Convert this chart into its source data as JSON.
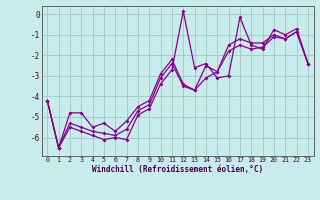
{
  "xlabel": "Windchill (Refroidissement éolien,°C)",
  "background_color": "#c8ecec",
  "line_color": "#880088",
  "grid_color": "#a0c8c8",
  "xlim": [
    -0.5,
    23.5
  ],
  "ylim": [
    -6.9,
    0.4
  ],
  "yticks": [
    0,
    -1,
    -2,
    -3,
    -4,
    -5,
    -6
  ],
  "xticks": [
    0,
    1,
    2,
    3,
    4,
    5,
    6,
    7,
    8,
    9,
    10,
    11,
    12,
    13,
    14,
    15,
    16,
    17,
    18,
    19,
    20,
    21,
    22,
    23
  ],
  "hours": [
    0,
    1,
    2,
    3,
    4,
    5,
    6,
    7,
    8,
    9,
    10,
    11,
    12,
    13,
    14,
    15,
    16,
    17,
    18,
    19,
    20,
    21,
    22,
    23
  ],
  "line1": [
    -4.2,
    -6.5,
    -5.5,
    -5.7,
    -5.9,
    -6.1,
    -6.0,
    -6.1,
    -4.9,
    -4.6,
    -3.4,
    -2.7,
    0.15,
    -2.6,
    -2.4,
    -3.1,
    -3.0,
    -0.15,
    -1.5,
    -1.7,
    -0.75,
    -1.0,
    -0.7,
    -2.4
  ],
  "line2": [
    -4.2,
    -6.5,
    -5.3,
    -5.5,
    -5.7,
    -5.8,
    -5.9,
    -5.6,
    -4.7,
    -4.4,
    -3.1,
    -2.4,
    -3.5,
    -3.7,
    -2.5,
    -2.8,
    -1.8,
    -1.5,
    -1.7,
    -1.6,
    -1.1,
    -1.2,
    -0.85,
    -2.4
  ],
  "line3": [
    -4.2,
    -6.5,
    -4.8,
    -4.8,
    -5.5,
    -5.3,
    -5.7,
    -5.2,
    -4.5,
    -4.2,
    -2.9,
    -2.2,
    -3.4,
    -3.7,
    -3.1,
    -2.8,
    -1.5,
    -1.2,
    -1.4,
    -1.4,
    -1.0,
    -1.2,
    -0.85,
    -2.4
  ]
}
